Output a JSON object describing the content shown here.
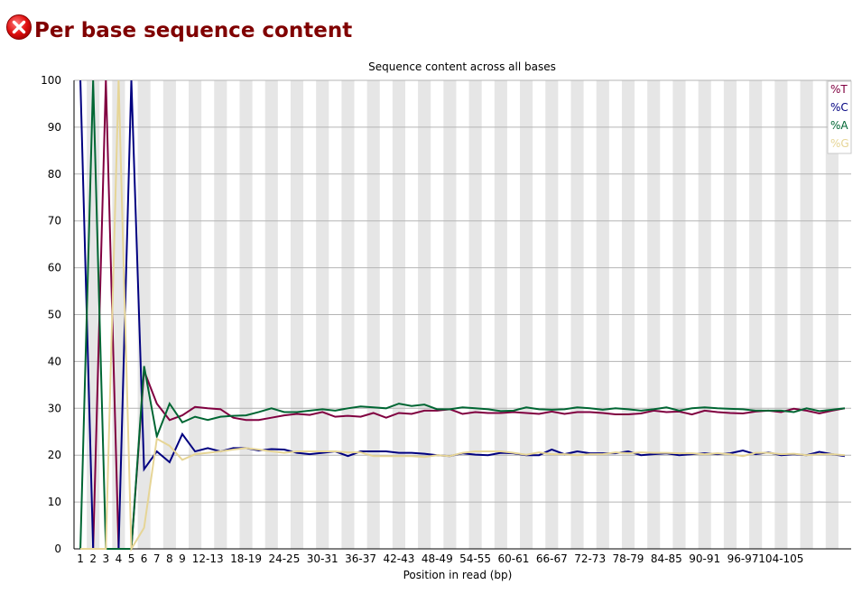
{
  "header": {
    "title": "Per base sequence content",
    "status_icon": "error-x-icon",
    "status_color": "#cc0000"
  },
  "chart_data": {
    "type": "line",
    "title": "Sequence content across all bases",
    "xlabel": "Position in read (bp)",
    "ylabel": "",
    "ylim": [
      0,
      100
    ],
    "yticks": [
      0,
      10,
      20,
      30,
      40,
      50,
      60,
      70,
      80,
      90,
      100
    ],
    "grid": true,
    "legend_position": "top-right",
    "categories": [
      "1",
      "2",
      "3",
      "4",
      "5",
      "6",
      "7",
      "8",
      "9",
      "10-11",
      "12-13",
      "14-15",
      "16-17",
      "18-19",
      "20-21",
      "22-23",
      "24-25",
      "26-27",
      "28-29",
      "30-31",
      "32-33",
      "34-35",
      "36-37",
      "38-39",
      "40-41",
      "42-43",
      "44-45",
      "46-47",
      "48-49",
      "50-51",
      "52-53",
      "54-55",
      "56-57",
      "58-59",
      "60-61",
      "62-63",
      "64-65",
      "66-67",
      "68-69",
      "70-71",
      "72-73",
      "74-75",
      "76-77",
      "78-79",
      "80-81",
      "82-83",
      "84-85",
      "86-87",
      "88-89",
      "90-91",
      "92-93",
      "94-95",
      "96-97",
      "98-99",
      "100-101",
      "102-103",
      "104-105",
      "106-107",
      "108-109",
      "110-111",
      "112-113"
    ],
    "tick_labels": [
      "1",
      "2",
      "3",
      "4",
      "5",
      "6",
      "7",
      "8",
      "9",
      "",
      "12-13",
      "",
      "",
      "18-19",
      "",
      "",
      "24-25",
      "",
      "",
      "30-31",
      "",
      "",
      "36-37",
      "",
      "",
      "42-43",
      "",
      "",
      "48-49",
      "",
      "",
      "54-55",
      "",
      "",
      "60-61",
      "",
      "",
      "66-67",
      "",
      "",
      "72-73",
      "",
      "",
      "78-79",
      "",
      "",
      "84-85",
      "",
      "",
      "90-91",
      "",
      "",
      "96-97",
      "",
      "",
      "104-105",
      "",
      "",
      "",
      "",
      ""
    ],
    "series": [
      {
        "name": "%T",
        "color": "#800040",
        "values": [
          0,
          0,
          100,
          0,
          0,
          38,
          31,
          27.5,
          28.5,
          30.3,
          30,
          29.8,
          28,
          27.5,
          27.5,
          28,
          28.5,
          28.8,
          28.6,
          29.2,
          28.2,
          28.4,
          28.2,
          29,
          28,
          29,
          28.8,
          29.5,
          29.5,
          29.8,
          28.8,
          29.2,
          29,
          29,
          29.2,
          29,
          28.8,
          29.3,
          28.8,
          29.2,
          29.2,
          29,
          28.7,
          28.7,
          28.9,
          29.5,
          29.2,
          29.3,
          28.7,
          29.5,
          29.2,
          29,
          28.9,
          29.3,
          29.5,
          29.2,
          29.9,
          29.5,
          28.9,
          29.5,
          30
        ]
      },
      {
        "name": "%C",
        "color": "#000080",
        "values": [
          100,
          0,
          0,
          0,
          100,
          17,
          20.8,
          18.5,
          24.5,
          20.8,
          21.5,
          20.8,
          21.5,
          21.5,
          21,
          21.3,
          21.2,
          20.5,
          20.2,
          20.5,
          20.8,
          19.8,
          20.8,
          20.8,
          20.8,
          20.5,
          20.5,
          20.3,
          20,
          19.8,
          20.4,
          20.1,
          20,
          20.5,
          20.4,
          20,
          20,
          21.2,
          20.2,
          20.8,
          20.4,
          20.4,
          20.4,
          20.8,
          20,
          20.2,
          20.4,
          20,
          20.2,
          20.4,
          20.2,
          20.4,
          21,
          20.2,
          20.6,
          20,
          20.2,
          20,
          20.7,
          20.2,
          19.8
        ]
      },
      {
        "name": "%A",
        "color": "#006633",
        "values": [
          0,
          100,
          0,
          0,
          0,
          39,
          24,
          31,
          27,
          28.2,
          27.5,
          28.2,
          28.4,
          28.5,
          29.2,
          30,
          29.2,
          29.2,
          29.5,
          29.8,
          29.5,
          30,
          30.4,
          30.2,
          30,
          31,
          30.5,
          30.8,
          29.8,
          29.8,
          30.2,
          30,
          29.8,
          29.4,
          29.5,
          30.2,
          29.8,
          29.7,
          29.8,
          30.2,
          30,
          29.7,
          30,
          29.8,
          29.5,
          29.8,
          30.2,
          29.5,
          30,
          30.2,
          30,
          29.9,
          29.8,
          29.5,
          29.5,
          29.5,
          29.2,
          30,
          29.4,
          29.7,
          30
        ]
      },
      {
        "name": "%G",
        "color": "#e6d596",
        "values": [
          0,
          0,
          0,
          100,
          0,
          4.5,
          23.5,
          22,
          19,
          20.2,
          20.5,
          20.8,
          21.2,
          21.5,
          21.2,
          20.8,
          20.5,
          20.8,
          20.8,
          20.8,
          20.8,
          20.6,
          20.6,
          19.8,
          19.8,
          19.8,
          19.8,
          19.6,
          20,
          19.8,
          20.5,
          20.8,
          20.8,
          20.8,
          20.5,
          20.1,
          20.6,
          20.2,
          20.2,
          20,
          20.2,
          20.2,
          20.6,
          20.4,
          20.6,
          20.5,
          20.5,
          20.4,
          20.4,
          20.2,
          20.4,
          20.2,
          19.8,
          20.5,
          20.5,
          20.2,
          20.3,
          20,
          20.2,
          20.2,
          20
        ]
      }
    ]
  }
}
